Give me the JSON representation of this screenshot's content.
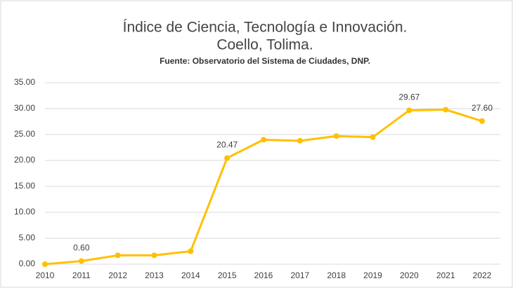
{
  "chart_data": {
    "type": "line",
    "title": [
      "Índice de Ciencia, Tecnología e Innovación.",
      "Coello, Tolima."
    ],
    "subtitle": "Fuente: Observatorio del Sistema de Ciudades, DNP.",
    "categories": [
      "2010",
      "2011",
      "2012",
      "2013",
      "2014",
      "2015",
      "2016",
      "2017",
      "2018",
      "2019",
      "2020",
      "2021",
      "2022"
    ],
    "values": [
      0,
      0.6,
      1.7,
      1.7,
      2.5,
      20.47,
      24.0,
      23.8,
      24.7,
      24.5,
      29.67,
      29.8,
      27.6
    ],
    "value_labels": [
      null,
      "0.60",
      null,
      null,
      null,
      "20.47",
      null,
      null,
      null,
      null,
      "29.67",
      null,
      "27.60"
    ],
    "color": "#FFC000",
    "ylim": [
      0,
      35
    ],
    "yticks": [
      {
        "value": 0,
        "label": "0.00"
      },
      {
        "value": 5,
        "label": "5.00"
      },
      {
        "value": 10,
        "label": "10.00"
      },
      {
        "value": 15,
        "label": "15.00"
      },
      {
        "value": 20,
        "label": "20.00"
      },
      {
        "value": 25,
        "label": "25.00"
      },
      {
        "value": 30,
        "label": "30.00"
      },
      {
        "value": 35,
        "label": "35.00"
      }
    ],
    "grid": true
  }
}
